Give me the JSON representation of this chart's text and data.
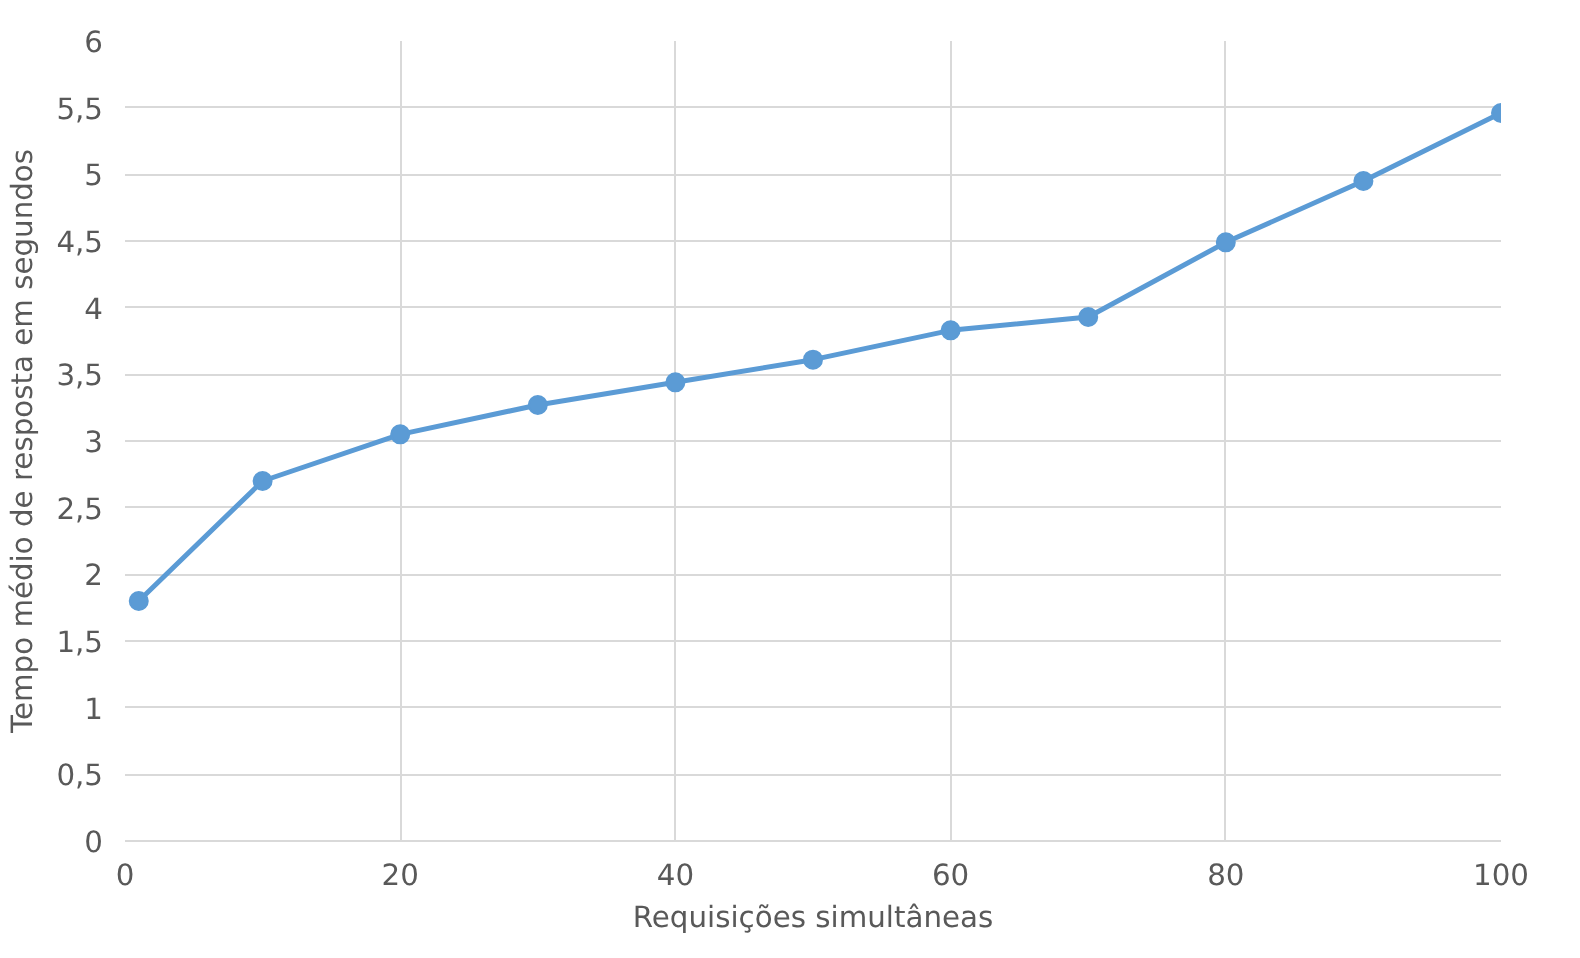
{
  "chart_data": {
    "type": "line",
    "xlabel": "Requisições simultâneas",
    "ylabel": "Tempo médio de resposta em segundos",
    "x": [
      1,
      10,
      20,
      30,
      40,
      50,
      60,
      70,
      80,
      90,
      100
    ],
    "series": [
      {
        "color": "#5b9bd5",
        "values": [
          1.8,
          2.7,
          3.05,
          3.27,
          3.44,
          3.61,
          3.83,
          3.93,
          4.49,
          4.95,
          5.46
        ]
      }
    ],
    "xlim": [
      0,
      100
    ],
    "xticks": [
      0,
      20,
      40,
      60,
      80,
      100
    ],
    "ylim": [
      0,
      6
    ],
    "yticks": [
      0,
      {
        "value": 0.5,
        "label": "0,5"
      },
      1,
      {
        "value": 1.5,
        "label": "1,5"
      },
      2,
      {
        "value": 2.5,
        "label": "2,5"
      },
      3,
      {
        "value": 3.5,
        "label": "3,5"
      },
      4,
      {
        "value": 4.5,
        "label": "4,5"
      },
      5,
      {
        "value": 5.5,
        "label": "5,5"
      },
      6
    ],
    "grid": true,
    "marker": "circle",
    "line_style": "solid"
  }
}
